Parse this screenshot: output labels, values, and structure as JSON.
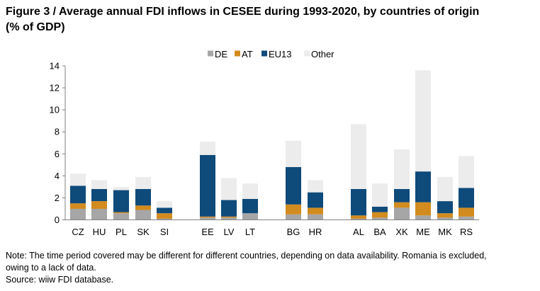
{
  "figure": {
    "title_line1": "Figure 3 / Average annual FDI inflows in CESEE during 1993-2020, by countries of origin",
    "title_line2": "(% of GDP)",
    "note_line1": "Note: The time period covered may be different for different countries, depending on data availability. Romania is excluded,",
    "note_line2": "owing to a lack of data.",
    "source": "Source: wiiw FDI database."
  },
  "chart_data": {
    "type": "bar",
    "stacked": true,
    "title": "Figure 3 / Average annual FDI inflows in CESEE during 1993-2020, by countries of origin (% of GDP)",
    "xlabel": "",
    "ylabel": "",
    "ylim": [
      0,
      14
    ],
    "yticks": [
      0,
      2,
      4,
      6,
      8,
      10,
      12,
      14
    ],
    "grid": false,
    "legend_position": "top",
    "groups": [
      [
        "CZ",
        "HU",
        "PL",
        "SK",
        "SI"
      ],
      [
        "EE",
        "LV",
        "LT"
      ],
      [
        "BG",
        "HR"
      ],
      [
        "AL",
        "BA",
        "XK",
        "ME",
        "MK",
        "RS"
      ]
    ],
    "categories": [
      "CZ",
      "HU",
      "PL",
      "SK",
      "SI",
      "EE",
      "LV",
      "LT",
      "BG",
      "HR",
      "AL",
      "BA",
      "XK",
      "ME",
      "MK",
      "RS"
    ],
    "series": [
      {
        "name": "DE",
        "color": "#a6a6a6",
        "values": [
          1.0,
          1.0,
          0.6,
          0.9,
          0.1,
          0.2,
          0.2,
          0.6,
          0.5,
          0.5,
          0.1,
          0.2,
          1.1,
          0.4,
          0.2,
          0.3
        ]
      },
      {
        "name": "AT",
        "color": "#d28b1e",
        "values": [
          0.5,
          0.7,
          0.1,
          0.4,
          0.5,
          0.1,
          0.1,
          0.0,
          0.9,
          0.6,
          0.3,
          0.5,
          0.5,
          1.2,
          0.4,
          0.8
        ]
      },
      {
        "name": "EU13",
        "color": "#0e4a7a",
        "values": [
          1.6,
          1.1,
          2.0,
          1.5,
          0.5,
          5.6,
          1.5,
          1.3,
          3.4,
          1.4,
          2.4,
          0.5,
          1.2,
          2.8,
          1.1,
          1.8
        ]
      },
      {
        "name": "Other",
        "color": "#ececec",
        "values": [
          1.1,
          0.8,
          0.3,
          1.1,
          0.6,
          1.2,
          2.0,
          1.4,
          2.4,
          1.1,
          5.9,
          2.1,
          3.6,
          9.2,
          2.2,
          2.9
        ]
      }
    ]
  }
}
